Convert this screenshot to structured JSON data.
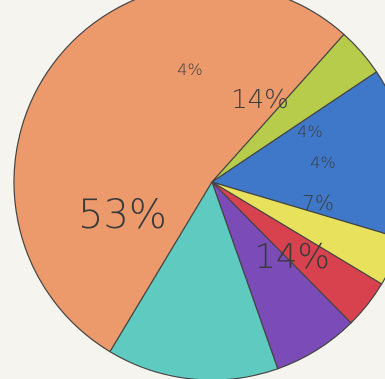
{
  "chart_data": {
    "type": "pie",
    "title": "",
    "slices": [
      {
        "label": "53%",
        "value": 53,
        "color": "#ec9a6c"
      },
      {
        "label": "4%",
        "value": 4,
        "color": "#b7cc4a"
      },
      {
        "label": "14%",
        "value": 14,
        "color": "#3f78c8"
      },
      {
        "label": "4%",
        "value": 4,
        "color": "#e7e15c"
      },
      {
        "label": "4%",
        "value": 4,
        "color": "#d8424e"
      },
      {
        "label": "7%",
        "value": 7,
        "color": "#7b4bb8"
      },
      {
        "label": "14%",
        "value": 14,
        "color": "#5fcbc0"
      }
    ]
  }
}
